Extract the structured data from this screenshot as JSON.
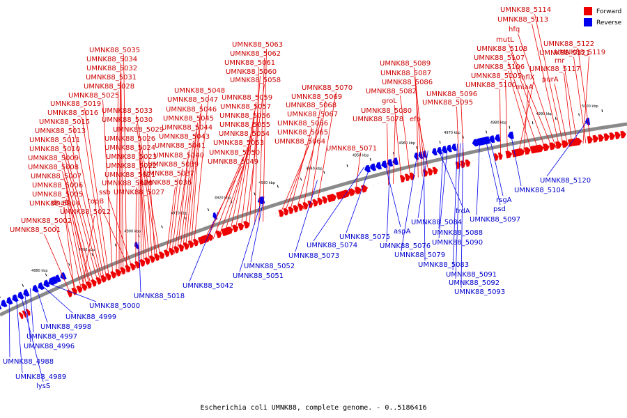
{
  "legend": {
    "forward_label": "Forward",
    "reverse_label": "Reverse"
  },
  "colors": {
    "forward": "#ee0000",
    "reverse": "#0000ee",
    "forward_text": "#cc0000",
    "reverse_text": "#0000cc",
    "backbone": "#8a8a8a"
  },
  "caption": "Escherichia coli UMNK88, complete genome. - 0..5186416",
  "scale": {
    "unit": "kbp",
    "ticks_kbp": [
      4880,
      4890,
      4900,
      4910,
      4920,
      4930,
      4940,
      4950,
      4960,
      4970,
      4980,
      4990,
      5000
    ]
  },
  "forward_labels": [
    "UMNK88_5001",
    "UMNK88_5002",
    "UMNK88_5012",
    "dnaB",
    "UMNK88_5004",
    "UMNK88_5005",
    "UMNK88_5006",
    "UMNK88_5007",
    "UMNK88_5008",
    "UMNK88_5009",
    "UMNK88_5010",
    "UMNK88_5011",
    "UMNK88_5013",
    "UMNK88_5015",
    "UMNK88_5016",
    "UMNK88_5019",
    "UMNK88_5025",
    "UMNK88_5028",
    "UMNK88_5031",
    "UMNK88_5032",
    "UMNK88_5034",
    "UMNK88_5035",
    "topB",
    "ssb",
    "UMNK88_5020",
    "UMNK88_5021",
    "UMNK88_5022",
    "UMNK88_5023",
    "UMNK88_5024",
    "UMNK88_5026",
    "UMNK88_5027",
    "UMNK88_5029",
    "UMNK88_5030",
    "UMNK88_5033",
    "UMNK88_5036",
    "UMNK88_5037",
    "UMNK88_5039",
    "UMNK88_5040",
    "UMNK88_5041",
    "UMNK88_5043",
    "UMNK88_5044",
    "UMNK88_5045",
    "UMNK88_5046",
    "UMNK88_5047",
    "UMNK88_5048",
    "UMNK88_5049",
    "UMNK88_5050",
    "UMNK88_5053",
    "UMNK88_5054",
    "UMNK88_5055",
    "UMNK88_5056",
    "UMNK88_5057",
    "UMNK88_5059",
    "UMNK88_5058",
    "UMNK88_5060",
    "UMNK88_5061",
    "UMNK88_5062",
    "UMNK88_5063",
    "UMNK88_5064",
    "UMNK88_5065",
    "UMNK88_5066",
    "UMNK88_5067",
    "UMNK88_5068",
    "UMNK88_5069",
    "UMNK88_5070",
    "UMNK88_5071",
    "UMNK88_5078",
    "UMNK88_5080",
    "groL",
    "efp",
    "UMNK88_5082",
    "UMNK88_5086",
    "UMNK88_5087",
    "UMNK88_5089",
    "UMNK88_5095",
    "UMNK88_5096",
    "UMNK88_5100",
    "UMNK88_5105",
    "hflX",
    "miaA",
    "UMNK88_5106",
    "UMNK88_5107",
    "UMNK88_5108",
    "mutL",
    "hfq",
    "UMNK88_5113",
    "UMNK88_5114",
    "purA",
    "UMNK88_5117",
    "rnr",
    "UMNK88_5119",
    "UMNK88_5121",
    "UMNK88_5122"
  ],
  "reverse_labels": [
    "UMNK88_4988",
    "UMNK88_4989",
    "lysS",
    "UMNK88_4996",
    "UMNK88_4997",
    "UMNK88_4998",
    "UMNK88_4999",
    "UMNK88_5000",
    "UMNK88_5018",
    "UMNK88_5042",
    "UMNK88_5051",
    "UMNK88_5052",
    "UMNK88_5073",
    "UMNK88_5074",
    "UMNK88_5075",
    "aspA",
    "UMNK88_5076",
    "UMNK88_5079",
    "UMNK88_5083",
    "UMNK88_5084",
    "frdA",
    "UMNK88_5088",
    "UMNK88_5090",
    "UMNK88_5091",
    "UMNK88_5092",
    "UMNK88_5093",
    "psd",
    "rsgA",
    "UMNK88_5097",
    "UMNK88_5104",
    "UMNK88_5120"
  ]
}
